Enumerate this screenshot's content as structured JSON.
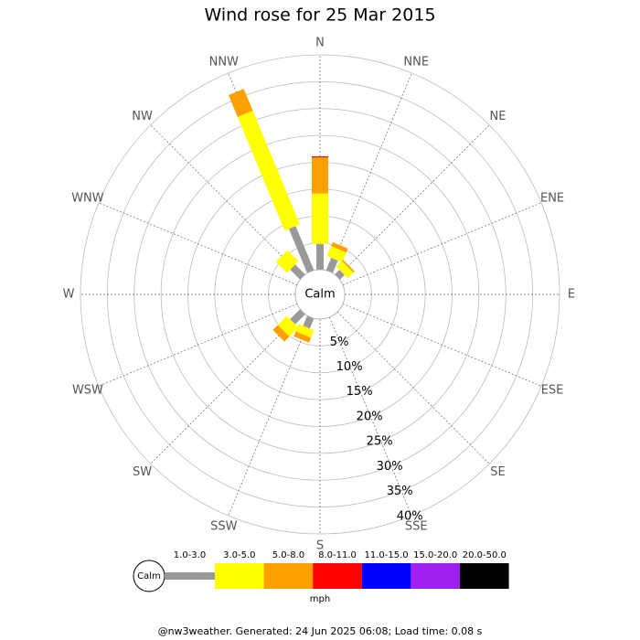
{
  "chart_data": {
    "type": "wind-rose",
    "title": "Wind rose for 25 Mar 2015",
    "calm_label": "Calm",
    "categories": [
      "N",
      "NNE",
      "NE",
      "ENE",
      "E",
      "ESE",
      "SE",
      "SSE",
      "S",
      "SSW",
      "SW",
      "WSW",
      "W",
      "WNW",
      "NW",
      "NNW"
    ],
    "rlim": [
      0,
      40
    ],
    "rticks": [
      {
        "value": 5,
        "label": "5%"
      },
      {
        "value": 10,
        "label": "10%"
      },
      {
        "value": 15,
        "label": "15%"
      },
      {
        "value": 20,
        "label": "20%"
      },
      {
        "value": 25,
        "label": "25%"
      },
      {
        "value": 30,
        "label": "30%"
      },
      {
        "value": 35,
        "label": "35%"
      },
      {
        "value": 40,
        "label": "40%"
      }
    ],
    "series": [
      {
        "name": "1.0-3.0",
        "color": "#999999",
        "values": [
          4.8,
          2.5,
          1.2,
          0,
          0,
          0,
          0,
          0,
          0,
          2.0,
          2.6,
          0,
          0,
          0,
          2.6,
          8.9
        ]
      },
      {
        "name": "3.0-5.0",
        "color": "#ffff00",
        "values": [
          9.4,
          2.0,
          1.5,
          0,
          0,
          0,
          0,
          0,
          0,
          1.5,
          2.4,
          0,
          0,
          0,
          2.9,
          22.9
        ]
      },
      {
        "name": "5.0-8.0",
        "color": "#ffa000",
        "values": [
          6.7,
          0.8,
          0.3,
          0,
          0,
          0,
          0,
          0,
          0,
          1.0,
          1.3,
          0,
          0,
          0,
          0,
          4.4
        ]
      },
      {
        "name": "8.0-11.0",
        "color": "#ff0000",
        "values": [
          0.2,
          0,
          0,
          0,
          0,
          0,
          0,
          0,
          0,
          0,
          0,
          0,
          0,
          0,
          0,
          0
        ]
      },
      {
        "name": "11.0-15.0",
        "color": "#0000ff",
        "values": [
          0,
          0,
          0,
          0,
          0,
          0,
          0,
          0,
          0,
          0,
          0,
          0,
          0,
          0,
          0,
          0
        ]
      },
      {
        "name": "15.0-20.0",
        "color": "#a020f0",
        "values": [
          0,
          0,
          0,
          0,
          0,
          0,
          0,
          0,
          0,
          0,
          0,
          0,
          0,
          0,
          0,
          0
        ]
      },
      {
        "name": "20.0-50.0",
        "color": "#000000",
        "values": [
          0,
          0,
          0,
          0,
          0,
          0,
          0,
          0,
          0,
          0,
          0,
          0,
          0,
          0,
          0,
          0
        ]
      }
    ],
    "legend_title": "mph",
    "footer": "@nw3weather. Generated: 24 Jun 2025 06:08; Load time: 0.08 s"
  }
}
